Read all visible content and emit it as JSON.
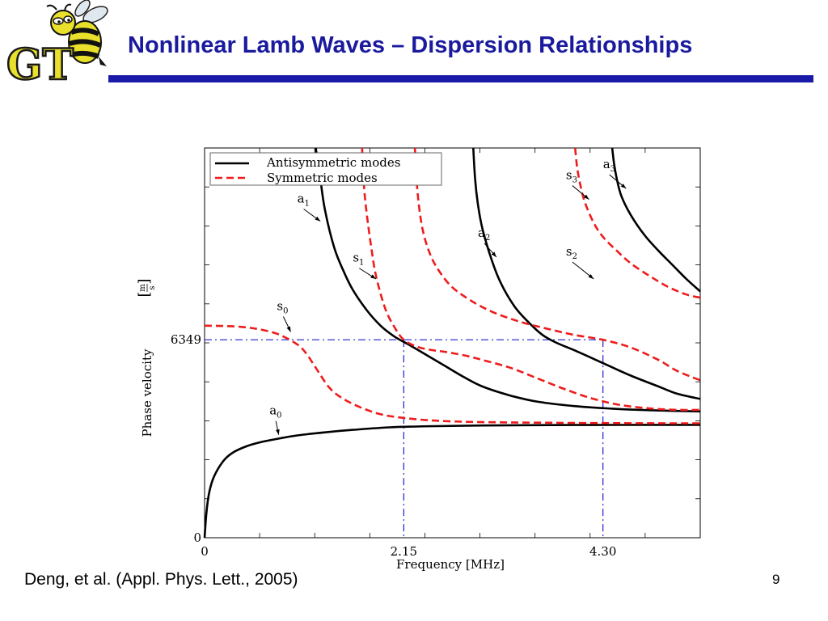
{
  "slide": {
    "title": "Nonlinear Lamb Waves – Dispersion Relationships",
    "citation": "Deng, et al. (Appl. Phys. Lett., 2005)",
    "page_number": "9",
    "logo_text": "GT",
    "colors": {
      "title": "#1a1a9e",
      "rule": "#1a1aa8",
      "logo_gold": "#e8e02a"
    }
  },
  "chart_data": {
    "type": "line",
    "xlabel": "Frequency [MHz]",
    "ylabel": "Phase velocity",
    "ylabel_unit": {
      "numerator": "m",
      "denominator": "s"
    },
    "x_ticks": [
      {
        "value": 0,
        "label": "0"
      },
      {
        "value": 2.15,
        "label": "2.15"
      },
      {
        "value": 4.3,
        "label": "4.30"
      }
    ],
    "y_ticks": [
      {
        "value": 0,
        "label": "0"
      },
      {
        "value": 6349,
        "label": "6349"
      }
    ],
    "xlim": [
      0,
      5.35
    ],
    "ylim": [
      0,
      12500
    ],
    "grid": false,
    "legend": {
      "position": "top-left",
      "entries": [
        {
          "label": "Antisymmetric modes",
          "color": "#000000",
          "style": "solid"
        },
        {
          "label": "Symmetric modes",
          "color": "#ee1c1c",
          "style": "dashed"
        }
      ]
    },
    "reference_lines": [
      {
        "orientation": "horizontal",
        "value": 6349,
        "color": "#1f1fd0",
        "style": "dash-dot"
      },
      {
        "orientation": "vertical",
        "value": 2.15,
        "color": "#1f1fd0",
        "style": "dash-dot"
      },
      {
        "orientation": "vertical",
        "value": 4.3,
        "color": "#1f1fd0",
        "style": "dash-dot"
      }
    ],
    "series": [
      {
        "name": "a",
        "sub": "0",
        "family": "antisymmetric",
        "label_at": [
          0.7,
          3950
        ],
        "arrow_to": [
          0.8,
          3300
        ],
        "x": [
          0,
          0.02,
          0.05,
          0.1,
          0.2,
          0.3,
          0.45,
          0.6,
          0.8,
          1.0,
          1.3,
          1.6,
          2.0,
          2.5,
          3.0,
          3.5,
          4.0,
          4.5,
          5.0,
          5.35
        ],
        "y": [
          0,
          800,
          1450,
          1950,
          2450,
          2720,
          2930,
          3060,
          3180,
          3280,
          3380,
          3460,
          3540,
          3580,
          3600,
          3610,
          3615,
          3618,
          3620,
          3620
        ]
      },
      {
        "name": "s",
        "sub": "0",
        "family": "symmetric",
        "label_at": [
          0.78,
          7300
        ],
        "arrow_to": [
          0.93,
          6600
        ],
        "x": [
          0,
          0.2,
          0.4,
          0.6,
          0.8,
          1.0,
          1.1,
          1.2,
          1.35,
          1.5,
          1.7,
          1.9,
          2.1,
          2.4,
          2.8,
          3.2,
          3.6,
          4.0,
          4.5,
          5.0,
          5.35
        ],
        "y": [
          6800,
          6790,
          6760,
          6680,
          6520,
          6200,
          5900,
          5450,
          4800,
          4450,
          4160,
          3960,
          3860,
          3770,
          3720,
          3700,
          3690,
          3680,
          3675,
          3670,
          3670
        ]
      },
      {
        "name": "a",
        "sub": "1",
        "family": "antisymmetric",
        "label_at": [
          1.0,
          10750
        ],
        "arrow_to": [
          1.25,
          10150
        ],
        "x": [
          1.2,
          1.25,
          1.3,
          1.4,
          1.5,
          1.6,
          1.75,
          1.9,
          2.05,
          2.2,
          2.4,
          2.6,
          2.8,
          3.0,
          3.3,
          3.6,
          4.0,
          4.4,
          4.8,
          5.35
        ],
        "y": [
          12500,
          11500,
          10500,
          9300,
          8550,
          7950,
          7300,
          6800,
          6450,
          6200,
          5850,
          5500,
          5150,
          4850,
          4560,
          4360,
          4220,
          4140,
          4090,
          4050
        ]
      },
      {
        "name": "s",
        "sub": "1",
        "family": "symmetric",
        "label_at": [
          1.6,
          8850
        ],
        "arrow_to": [
          1.85,
          8300
        ],
        "x": [
          1.7,
          1.72,
          1.75,
          1.8,
          1.85,
          1.95,
          2.05,
          2.15,
          2.3,
          2.45,
          2.6,
          2.8,
          3.0,
          3.3,
          3.6,
          3.9,
          4.2,
          4.5,
          4.8,
          5.1,
          5.35
        ],
        "y": [
          12500,
          11300,
          10400,
          9300,
          8400,
          7350,
          6750,
          6349,
          6120,
          6020,
          5960,
          5850,
          5700,
          5450,
          5100,
          4750,
          4450,
          4250,
          4150,
          4100,
          4100
        ]
      },
      {
        "name": "a",
        "sub": "2",
        "family": "antisymmetric",
        "label_at": [
          2.95,
          9650
        ],
        "arrow_to": [
          3.15,
          9000
        ],
        "x": [
          2.9,
          2.92,
          2.95,
          3.0,
          3.1,
          3.2,
          3.35,
          3.5,
          3.65,
          3.8,
          4.0,
          4.3,
          4.6,
          4.9,
          5.1,
          5.35
        ],
        "y": [
          12500,
          11500,
          10700,
          9900,
          8900,
          8150,
          7400,
          6900,
          6500,
          6250,
          6000,
          5600,
          5200,
          4850,
          4620,
          4450
        ]
      },
      {
        "name": "s",
        "sub": "2",
        "family": "symmetric",
        "label_at": [
          3.9,
          9050
        ],
        "arrow_to": [
          4.2,
          8300
        ],
        "x": [
          2.27,
          2.29,
          2.32,
          2.36,
          2.42,
          2.5,
          2.65,
          2.85,
          3.1,
          3.4,
          3.7,
          4.0,
          4.3,
          4.6,
          4.9,
          5.1,
          5.35
        ],
        "y": [
          12500,
          11400,
          10500,
          9800,
          9200,
          8700,
          8100,
          7650,
          7250,
          6930,
          6700,
          6500,
          6349,
          6100,
          5700,
          5350,
          5050
        ]
      },
      {
        "name": "s",
        "sub": "3",
        "family": "symmetric",
        "label_at": [
          3.9,
          11500
        ],
        "arrow_to": [
          4.15,
          10850
        ],
        "x": [
          4.0,
          4.02,
          4.05,
          4.1,
          4.2,
          4.3,
          4.45,
          4.6,
          4.8,
          5.0,
          5.2,
          5.35
        ],
        "y": [
          12500,
          11900,
          11400,
          10800,
          10100,
          9650,
          9200,
          8800,
          8400,
          8050,
          7800,
          7700
        ]
      },
      {
        "name": "a",
        "sub": "3",
        "family": "antisymmetric",
        "label_at": [
          4.3,
          11850
        ],
        "arrow_to": [
          4.55,
          11200
        ],
        "x": [
          4.4,
          4.42,
          4.45,
          4.5,
          4.6,
          4.75,
          4.9,
          5.05,
          5.2,
          5.35
        ],
        "y": [
          12500,
          12000,
          11500,
          10950,
          10350,
          9700,
          9200,
          8750,
          8300,
          7900
        ]
      }
    ]
  }
}
